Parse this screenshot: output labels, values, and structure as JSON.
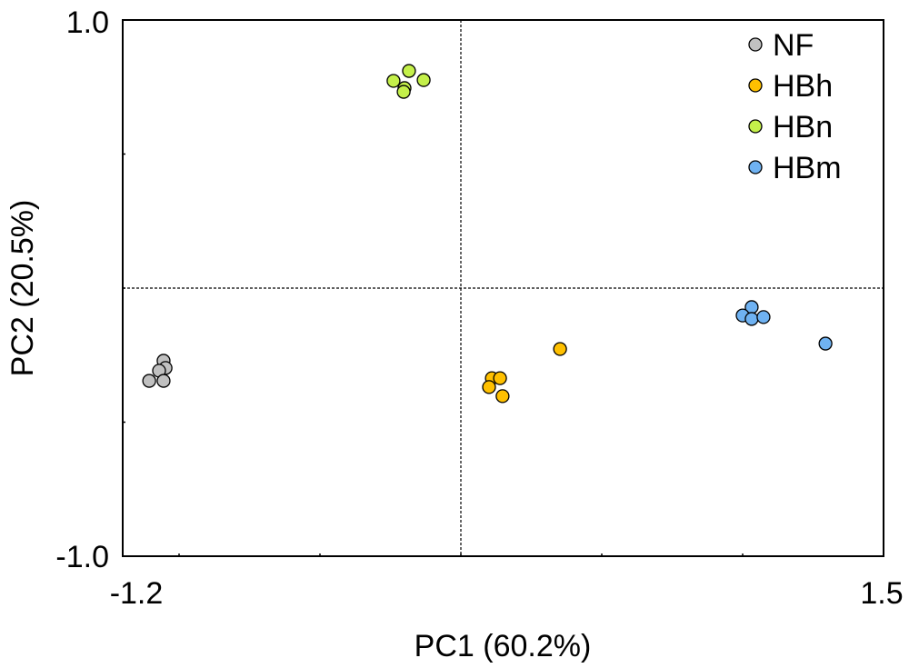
{
  "chart_data": {
    "type": "scatter",
    "title": "",
    "xlabel": "PC1 (60.2%)",
    "ylabel": "PC2 (20.5%)",
    "xlim": [
      -1.2,
      1.5
    ],
    "ylim": [
      -1.0,
      1.0
    ],
    "x_tick_labels": [
      "-1.2",
      "1.5"
    ],
    "y_tick_labels": [
      "1.0",
      "-1.0"
    ],
    "minor_ticks_x": [
      -1.0,
      -0.5,
      0.0,
      0.5,
      1.0
    ],
    "minor_ticks_y": [
      -0.5,
      0.0,
      0.5
    ],
    "reference_lines": {
      "x": 0,
      "y": 0,
      "style": "dashed"
    },
    "grid": false,
    "legend_position": "top-right",
    "series": [
      {
        "name": "NF",
        "color": "#c0c0c0",
        "x": [
          -1.055,
          -1.048,
          -1.071,
          -1.106,
          -1.055
        ],
        "y": [
          -0.271,
          -0.298,
          -0.308,
          -0.346,
          -0.346
        ]
      },
      {
        "name": "HBh",
        "color": "#ffc000",
        "x": [
          0.352,
          0.11,
          0.139,
          0.1,
          0.148
        ],
        "y": [
          -0.227,
          -0.336,
          -0.336,
          -0.369,
          -0.403
        ]
      },
      {
        "name": "HBn",
        "color": "#c4f04a",
        "x": [
          -0.184,
          -0.239,
          -0.132,
          -0.2,
          -0.203
        ],
        "y": [
          0.81,
          0.773,
          0.776,
          0.746,
          0.732
        ]
      },
      {
        "name": "HBm",
        "color": "#6fb2f2",
        "x": [
          1.032,
          1.0,
          1.032,
          1.074,
          1.294
        ],
        "y": [
          -0.071,
          -0.102,
          -0.115,
          -0.108,
          -0.207
        ]
      }
    ]
  }
}
